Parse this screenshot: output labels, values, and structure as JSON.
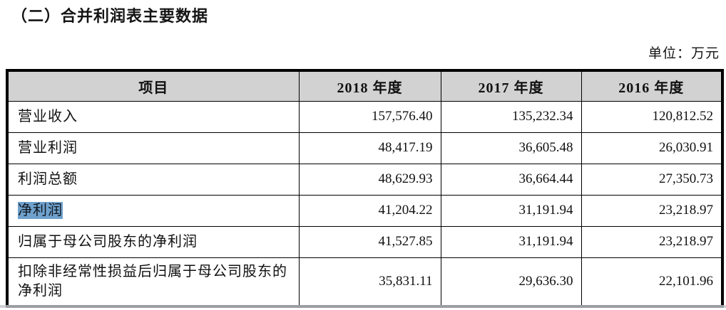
{
  "page": {
    "title": "（二）合并利润表主要数据",
    "unit_label": "单位：万元"
  },
  "table": {
    "columns": [
      "项目",
      "2018 年度",
      "2017 年度",
      "2016 年度"
    ],
    "header_bg": "#d2d2d2",
    "highlight_color": "#6fa1cd",
    "rows": [
      {
        "item": "营业收入",
        "y2018": "157,576.40",
        "y2017": "135,232.34",
        "y2016": "120,812.52",
        "highlighted": false
      },
      {
        "item": "营业利润",
        "y2018": "48,417.19",
        "y2017": "36,605.48",
        "y2016": "26,030.91",
        "highlighted": false
      },
      {
        "item": "利润总额",
        "y2018": "48,629.93",
        "y2017": "36,664.44",
        "y2016": "27,350.73",
        "highlighted": false
      },
      {
        "item": "净利润",
        "y2018": "41,204.22",
        "y2017": "31,191.94",
        "y2016": "23,218.97",
        "highlighted": true
      },
      {
        "item": "归属于母公司股东的净利润",
        "y2018": "41,527.85",
        "y2017": "31,191.94",
        "y2016": "23,218.97",
        "highlighted": false
      },
      {
        "item": "扣除非经常性损益后归属于母公司股东的净利润",
        "y2018": "35,831.11",
        "y2017": "29,636.30",
        "y2016": "22,101.96",
        "highlighted": false
      }
    ]
  }
}
